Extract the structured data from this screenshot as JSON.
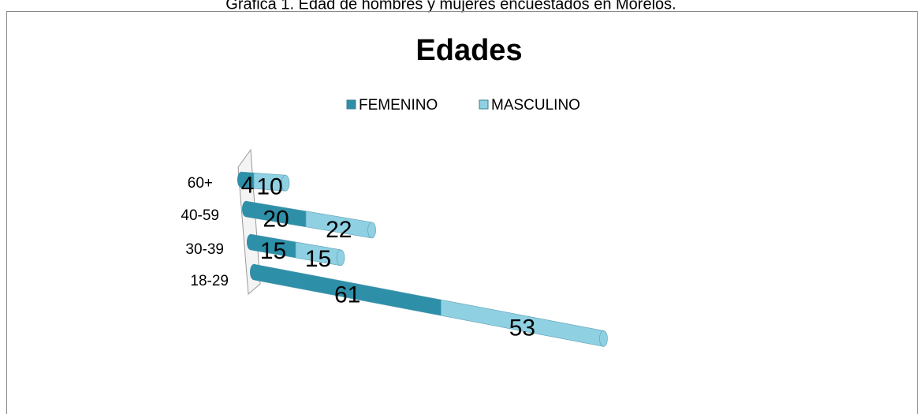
{
  "caption": "Gráfica 1. Edad de hombres y mujeres encuestados en Morelos.",
  "chart_data": {
    "type": "bar3d_stacked_horizontal",
    "title": "Edades",
    "categories": [
      "18-29",
      "30-39",
      "40-59",
      "60+"
    ],
    "series": [
      {
        "name": "FEMENINO",
        "color": "#2e8fa8",
        "values": [
          61,
          15,
          20,
          4
        ]
      },
      {
        "name": "MASCULINO",
        "color": "#8fd0e3",
        "values": [
          53,
          15,
          22,
          10
        ]
      }
    ],
    "legend": "top"
  }
}
